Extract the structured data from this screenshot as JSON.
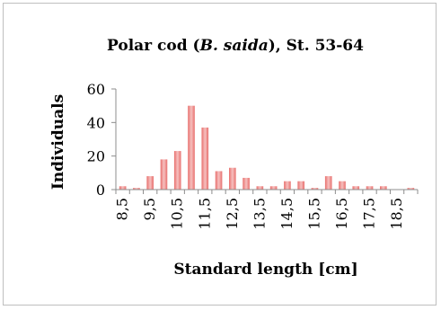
{
  "chart_data": {
    "type": "bar",
    "title_parts": [
      {
        "text": "Polar cod (",
        "italic": false
      },
      {
        "text": "B. saida",
        "italic": true
      },
      {
        "text": "), St. 53-64",
        "italic": false
      }
    ],
    "title": "Polar cod (B. saida), St. 53-64",
    "xlabel": "Standard length [cm]",
    "ylabel": "Individuals",
    "ylim": [
      0,
      60
    ],
    "yticks": [
      0,
      20,
      40,
      60
    ],
    "grid": false,
    "legend": "none",
    "categories": [
      "8,5",
      "9",
      "9,5",
      "10",
      "10,5",
      "11",
      "11,5",
      "12",
      "12,5",
      "13",
      "13,5",
      "14",
      "14,5",
      "15",
      "15,5",
      "16",
      "16,5",
      "17",
      "17,5",
      "18",
      "18,5",
      "19"
    ],
    "xtick_labels": [
      "8,5",
      "9,5",
      "10,5",
      "11,5",
      "12,5",
      "13,5",
      "14,5",
      "15,5",
      "16,5",
      "17,5",
      "18,5"
    ],
    "series": [
      {
        "values": [
          2,
          1,
          8,
          18,
          23,
          50,
          37,
          11,
          13,
          7,
          2,
          2,
          5,
          5,
          1,
          8,
          5,
          2,
          2,
          2,
          0,
          1
        ]
      }
    ],
    "colors": {
      "bar_light": "#f6c0bf",
      "bar_dark": "#e8706e",
      "axis": "#8c8c8c"
    }
  }
}
